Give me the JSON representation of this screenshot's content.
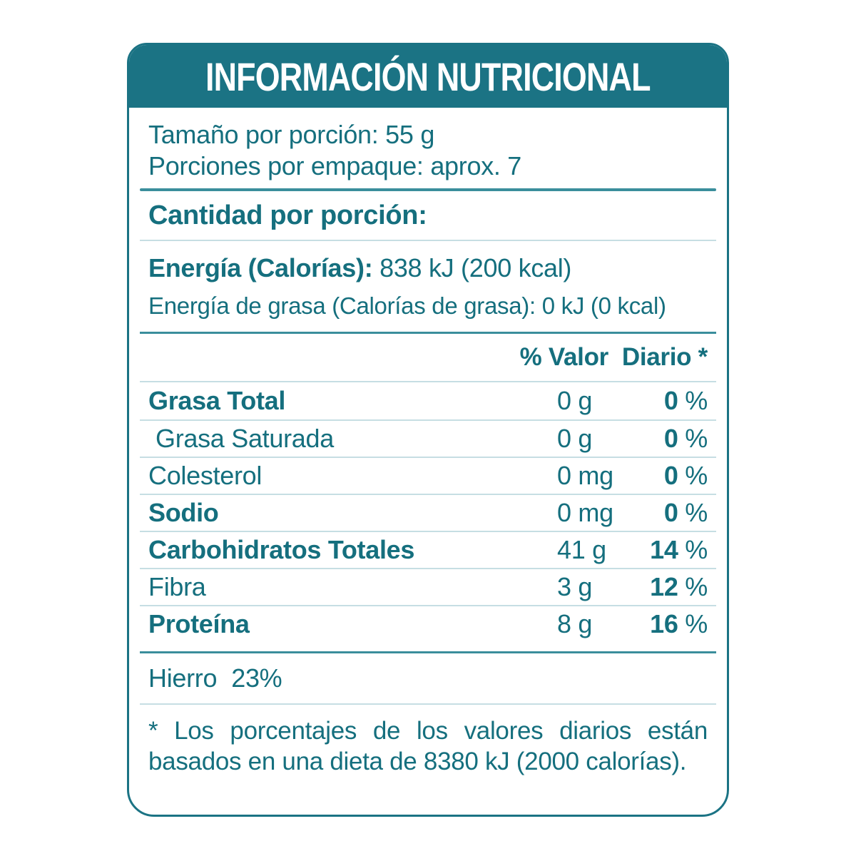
{
  "colors": {
    "teal": "#1B7384",
    "text": "#156F7E",
    "line_light": "#C6DEE3",
    "line_medium": "#3A8E9C",
    "background": "#FFFFFF"
  },
  "header": {
    "title": "INFORMACIÓN NUTRICIONAL"
  },
  "serving": {
    "size": "Tamaño por porción: 55 g",
    "per_package": "Porciones por empaque: aprox. 7"
  },
  "section": {
    "amount_per_serving": "Cantidad por porción:"
  },
  "energy": {
    "label": "Energía (Calorías):",
    "value": "838 kJ (200 kcal)",
    "fat_label": "Energía de grasa (Calorías de grasa):",
    "fat_value": "0 kJ (0 kcal)"
  },
  "table": {
    "dv_header": "% Valor  Diario *",
    "rows": [
      {
        "name": "Grasa Total",
        "amount": "0 g",
        "dv": "0",
        "dv_sign": "%",
        "bold": true,
        "indent": false
      },
      {
        "name": "Grasa Saturada",
        "amount": "0 g",
        "dv": "0",
        "dv_sign": "%",
        "bold": false,
        "indent": true
      },
      {
        "name": "Colesterol",
        "amount": "0 mg",
        "dv": "0",
        "dv_sign": "%",
        "bold": false,
        "indent": false
      },
      {
        "name": "Sodio",
        "amount": "0 mg",
        "dv": "0",
        "dv_sign": "%",
        "bold": true,
        "indent": false
      },
      {
        "name": "Carbohidratos Totales",
        "amount": "41 g",
        "dv": "14",
        "dv_sign": "%",
        "bold": true,
        "indent": false
      },
      {
        "name": "Fibra",
        "amount": "3 g",
        "dv": "12",
        "dv_sign": "%",
        "bold": false,
        "indent": false
      },
      {
        "name": "Proteína",
        "amount": "8 g",
        "dv": "16",
        "dv_sign": "%",
        "bold": true,
        "indent": false
      }
    ]
  },
  "minerals": {
    "iron_label": "Hierro",
    "iron_value": "23%"
  },
  "footnote": "* Los porcentajes de los valores diarios están basados en una dieta de 8380 kJ (2000 calorías)."
}
